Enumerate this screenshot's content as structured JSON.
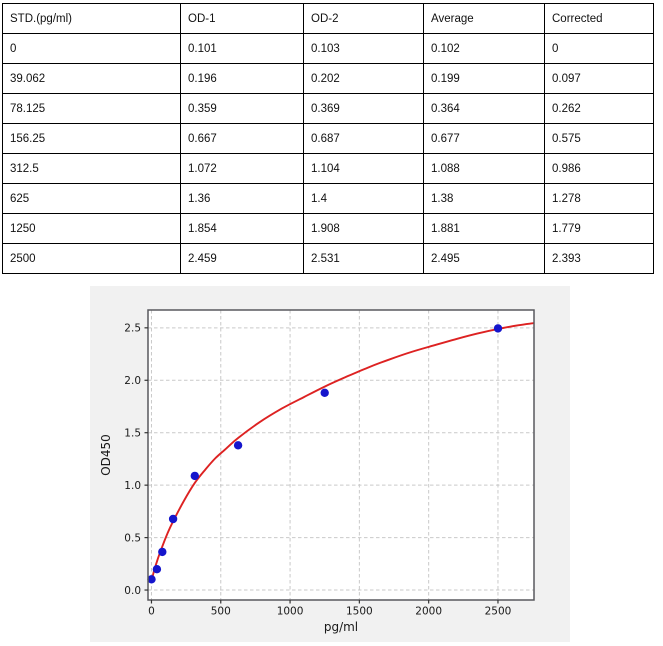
{
  "table": {
    "headers": [
      "STD.(pg/ml)",
      "OD-1",
      "OD-2",
      "Average",
      "Corrected"
    ],
    "rows": [
      [
        "0",
        "0.101",
        "0.103",
        "0.102",
        "0"
      ],
      [
        "39.062",
        "0.196",
        "0.202",
        "0.199",
        "0.097"
      ],
      [
        "78.125",
        "0.359",
        "0.369",
        "0.364",
        "0.262"
      ],
      [
        "156.25",
        "0.667",
        "0.687",
        "0.677",
        "0.575"
      ],
      [
        "312.5",
        "1.072",
        "1.104",
        "1.088",
        "0.986"
      ],
      [
        "625",
        "1.36",
        "1.4",
        "1.38",
        "1.278"
      ],
      [
        "1250",
        "1.854",
        "1.908",
        "1.881",
        "1.779"
      ],
      [
        "2500",
        "2.459",
        "2.531",
        "2.495",
        "2.393"
      ]
    ]
  },
  "chart_data": {
    "type": "scatter",
    "title": "",
    "xlabel": "pg/ml",
    "ylabel": "OD450",
    "xlim": [
      -25,
      2760
    ],
    "ylim": [
      -0.095,
      2.67
    ],
    "x_ticks": [
      0,
      500,
      1000,
      1500,
      2000,
      2500
    ],
    "x_tick_labels": [
      "0",
      "500",
      "1000",
      "1500",
      "2000",
      "2500"
    ],
    "y_ticks": [
      0,
      0.5,
      1.0,
      1.5,
      2.0,
      2.5
    ],
    "y_tick_labels": [
      "0.0",
      "0.5",
      "1.0",
      "1.5",
      "2.0",
      "2.5"
    ],
    "grid": "dashed",
    "legend": "none",
    "points": {
      "name": "standards-average-od",
      "x": [
        0,
        39.062,
        78.125,
        156.25,
        312.5,
        625,
        1250,
        2500
      ],
      "y": [
        0.102,
        0.199,
        0.364,
        0.677,
        1.088,
        1.38,
        1.881,
        2.495
      ],
      "color": "#1515cc"
    },
    "fit_curve": {
      "name": "standard-curve-fit",
      "color": "#dd2222",
      "x": [
        0,
        10,
        20,
        39,
        58,
        78,
        117,
        156,
        234,
        312,
        390,
        460,
        540,
        625,
        780,
        940,
        1100,
        1250,
        1400,
        1560,
        1720,
        1875,
        2030,
        2190,
        2350,
        2500,
        2650,
        2760
      ],
      "y": [
        0.085,
        0.14,
        0.19,
        0.27,
        0.345,
        0.415,
        0.545,
        0.655,
        0.85,
        1.02,
        1.15,
        1.255,
        1.35,
        1.45,
        1.6,
        1.73,
        1.84,
        1.94,
        2.03,
        2.12,
        2.2,
        2.27,
        2.33,
        2.39,
        2.445,
        2.49,
        2.525,
        2.545
      ]
    },
    "style": {
      "figure_bg": "#f1f1f1",
      "plot_bg": "#ffffff",
      "grid_color": "#c9c9c9",
      "spine_color": "#59595e",
      "tick_color": "#333333"
    }
  }
}
